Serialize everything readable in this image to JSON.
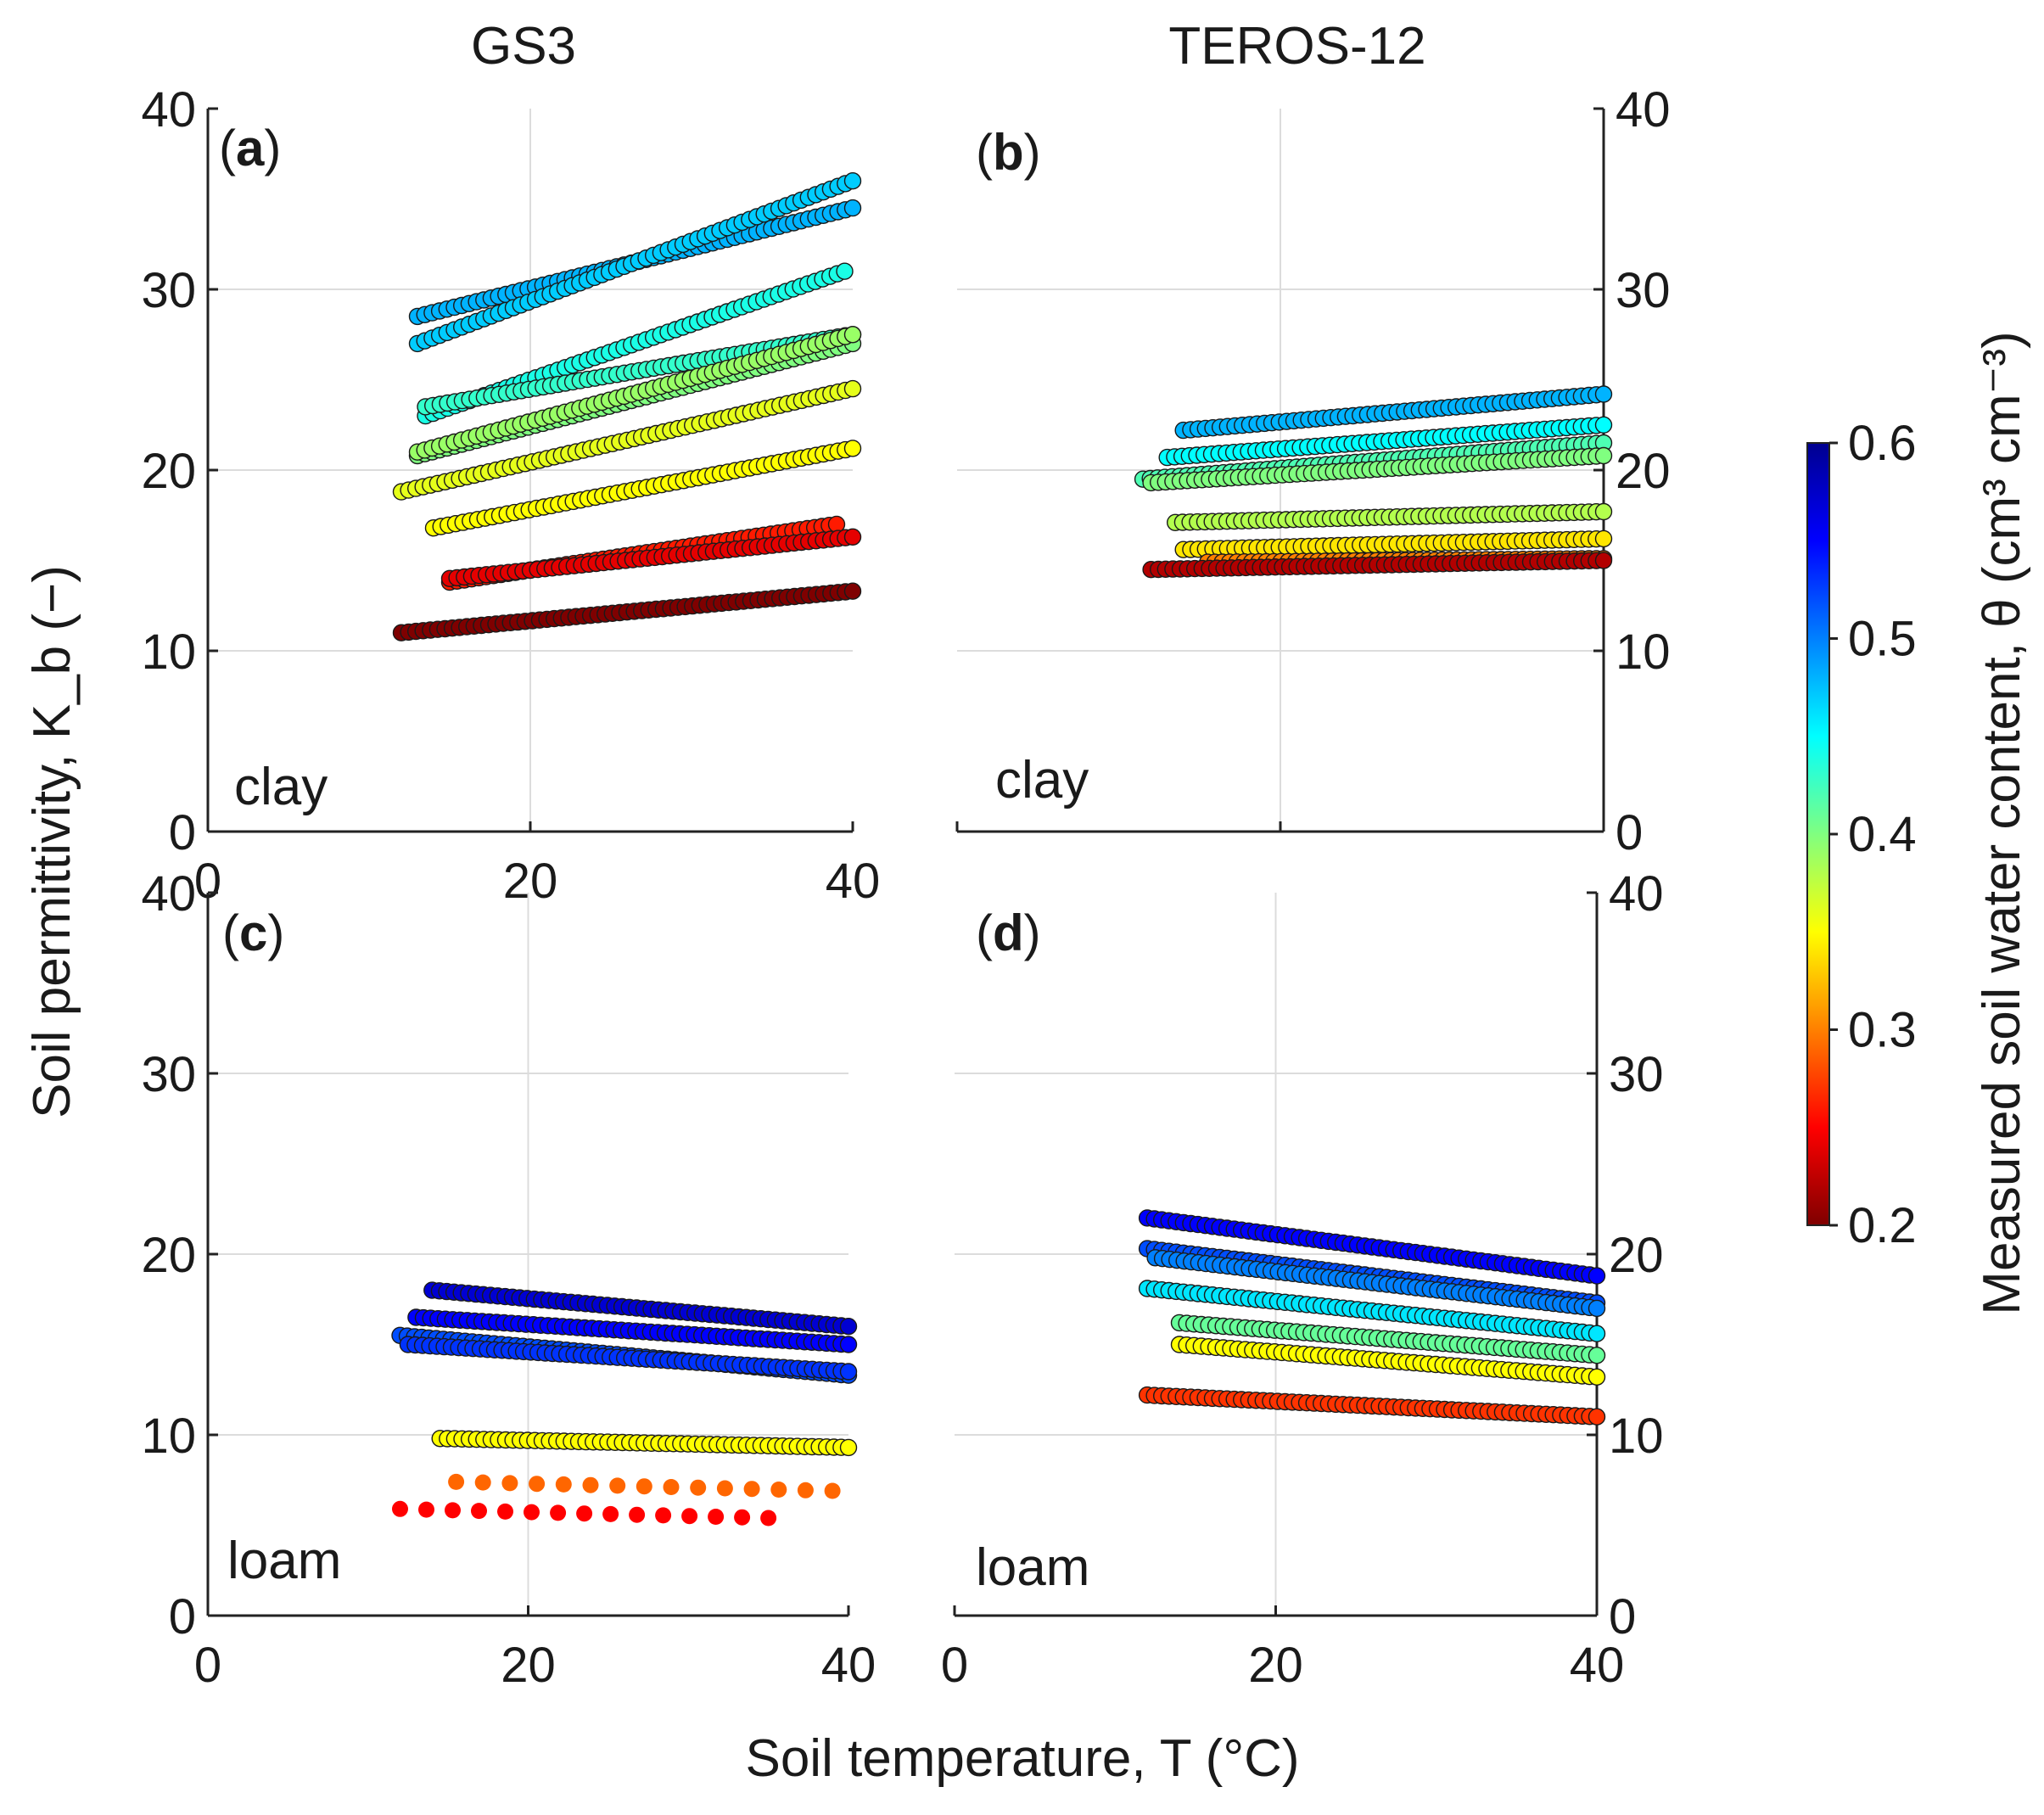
{
  "figure": {
    "column_titles": [
      "GS3",
      "TEROS-12"
    ],
    "xlabel": "Soil temperature, T (°C)",
    "ylabel": "Soil permittivity, K_b (−)",
    "colorbar": {
      "label": "Measured soil water content, θ (cm³ cm⁻³)",
      "min": 0.2,
      "max": 0.6,
      "ticks": [
        "0.2",
        "0.3",
        "0.4",
        "0.5",
        "0.6"
      ],
      "colormap": [
        "#7f0000",
        "#ff0000",
        "#ff8000",
        "#ffff00",
        "#80ff80",
        "#00ffff",
        "#0080ff",
        "#0000ff",
        "#00008f"
      ]
    }
  },
  "chart_data": [
    {
      "type": "scatter",
      "panel": "(a)",
      "tag_letter": "a",
      "sensor": "GS3",
      "soil": "clay",
      "xlim": [
        0,
        40
      ],
      "ylim": [
        0,
        40
      ],
      "xticks": [
        "0",
        "20",
        "40"
      ],
      "yticks": [
        "0",
        "10",
        "20",
        "30",
        "40"
      ],
      "series": [
        {
          "theta": 0.48,
          "x": [
            13,
            40
          ],
          "y": [
            28.5,
            34.5
          ]
        },
        {
          "theta": 0.47,
          "x": [
            13,
            40
          ],
          "y": [
            27.0,
            36.0
          ]
        },
        {
          "theta": 0.44,
          "x": [
            13.5,
            39.5
          ],
          "y": [
            23.0,
            31.0
          ]
        },
        {
          "theta": 0.43,
          "x": [
            13.5,
            40
          ],
          "y": [
            23.5,
            27.5
          ]
        },
        {
          "theta": 0.4,
          "x": [
            13,
            40
          ],
          "y": [
            20.8,
            27.0
          ]
        },
        {
          "theta": 0.39,
          "x": [
            13,
            40
          ],
          "y": [
            21.0,
            27.5
          ]
        },
        {
          "theta": 0.36,
          "x": [
            12,
            40
          ],
          "y": [
            18.8,
            24.5
          ]
        },
        {
          "theta": 0.35,
          "x": [
            14,
            40
          ],
          "y": [
            16.8,
            21.2
          ]
        },
        {
          "theta": 0.26,
          "x": [
            15,
            39
          ],
          "y": [
            13.8,
            17.0
          ]
        },
        {
          "theta": 0.24,
          "x": [
            15,
            40
          ],
          "y": [
            14.0,
            16.3
          ]
        },
        {
          "theta": 0.2,
          "x": [
            12,
            40
          ],
          "y": [
            11.0,
            13.3
          ]
        }
      ]
    },
    {
      "type": "scatter",
      "panel": "(b)",
      "tag_letter": "b",
      "sensor": "TEROS-12",
      "soil": "clay",
      "xlim": [
        0,
        40
      ],
      "ylim": [
        0,
        40
      ],
      "xticks": [],
      "yticks": [
        "0",
        "10",
        "20",
        "30",
        "40"
      ],
      "series": [
        {
          "theta": 0.48,
          "x": [
            14,
            40
          ],
          "y": [
            22.2,
            24.2
          ]
        },
        {
          "theta": 0.45,
          "x": [
            13,
            40
          ],
          "y": [
            20.7,
            22.5
          ]
        },
        {
          "theta": 0.42,
          "x": [
            11.5,
            40
          ],
          "y": [
            19.5,
            21.5
          ]
        },
        {
          "theta": 0.4,
          "x": [
            12,
            40
          ],
          "y": [
            19.3,
            20.8
          ]
        },
        {
          "theta": 0.38,
          "x": [
            13.5,
            40
          ],
          "y": [
            17.1,
            17.7
          ]
        },
        {
          "theta": 0.34,
          "x": [
            14,
            40
          ],
          "y": [
            15.6,
            16.2
          ]
        },
        {
          "theta": 0.3,
          "x": [
            15.5,
            40
          ],
          "y": [
            14.9,
            15.1
          ]
        },
        {
          "theta": 0.22,
          "x": [
            12,
            40
          ],
          "y": [
            14.5,
            15.0
          ]
        }
      ]
    },
    {
      "type": "scatter",
      "panel": "(c)",
      "tag_letter": "c",
      "sensor": "GS3",
      "soil": "loam",
      "xlim": [
        0,
        40
      ],
      "ylim": [
        0,
        40
      ],
      "xticks": [
        "0",
        "20",
        "40"
      ],
      "yticks": [
        "0",
        "10",
        "20",
        "30",
        "40"
      ],
      "series": [
        {
          "theta": 0.57,
          "x": [
            14,
            40
          ],
          "y": [
            18.0,
            16.0
          ]
        },
        {
          "theta": 0.55,
          "x": [
            13,
            40
          ],
          "y": [
            16.5,
            15.0
          ]
        },
        {
          "theta": 0.52,
          "x": [
            12,
            40
          ],
          "y": [
            15.5,
            13.3
          ]
        },
        {
          "theta": 0.53,
          "x": [
            12.5,
            40
          ],
          "y": [
            15.0,
            13.5
          ]
        },
        {
          "theta": 0.35,
          "x": [
            14.5,
            40
          ],
          "y": [
            9.8,
            9.3
          ]
        },
        {
          "theta": 0.29,
          "x": [
            15.5,
            39
          ],
          "y": [
            7.4,
            6.9
          ]
        },
        {
          "theta": 0.25,
          "x": [
            12,
            35
          ],
          "y": [
            5.9,
            5.4
          ]
        }
      ]
    },
    {
      "type": "scatter",
      "panel": "(d)",
      "tag_letter": "d",
      "sensor": "TEROS-12",
      "soil": "loam",
      "xlim": [
        0,
        40
      ],
      "ylim": [
        0,
        40
      ],
      "xticks": [
        "0",
        "20",
        "40"
      ],
      "yticks": [
        "0",
        "10",
        "20",
        "30",
        "40"
      ],
      "series": [
        {
          "theta": 0.55,
          "x": [
            12,
            40
          ],
          "y": [
            22.0,
            18.8
          ]
        },
        {
          "theta": 0.52,
          "x": [
            12,
            40
          ],
          "y": [
            20.3,
            17.3
          ]
        },
        {
          "theta": 0.5,
          "x": [
            12.5,
            40
          ],
          "y": [
            19.8,
            17.0
          ]
        },
        {
          "theta": 0.46,
          "x": [
            12,
            40
          ],
          "y": [
            18.1,
            15.6
          ]
        },
        {
          "theta": 0.41,
          "x": [
            14,
            40
          ],
          "y": [
            16.2,
            14.4
          ]
        },
        {
          "theta": 0.35,
          "x": [
            14,
            40
          ],
          "y": [
            15.0,
            13.2
          ]
        },
        {
          "theta": 0.27,
          "x": [
            12,
            40
          ],
          "y": [
            12.2,
            11.0
          ]
        }
      ]
    }
  ]
}
